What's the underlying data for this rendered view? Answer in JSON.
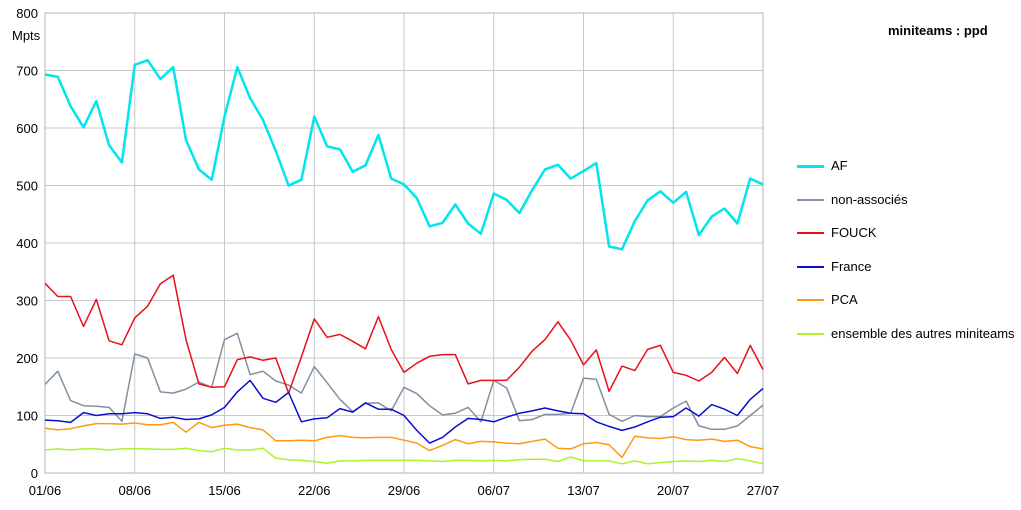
{
  "chart_data": {
    "type": "line",
    "title": "miniteams : ppd",
    "ylabel": "Mpts",
    "ylim": [
      0,
      800
    ],
    "yticks": [
      "0",
      "100",
      "200",
      "300",
      "400",
      "500",
      "600",
      "700",
      "800"
    ],
    "xtick_labels": [
      "01/06",
      "08/06",
      "15/06",
      "22/06",
      "29/06",
      "06/07",
      "13/07",
      "20/07",
      "27/07"
    ],
    "grid": true,
    "legend_position": "right",
    "series": [
      {
        "name": "AF",
        "color": "#00e5ee",
        "width": 2.5,
        "values": [
          693,
          689,
          638,
          601,
          647,
          570,
          540,
          710,
          718,
          685,
          706,
          579,
          528,
          510,
          620,
          706,
          652,
          614,
          560,
          500,
          510,
          620,
          568,
          563,
          524,
          535,
          588,
          512,
          502,
          478,
          429,
          435,
          467,
          434,
          416,
          486,
          475,
          452,
          492,
          528,
          536,
          512,
          525,
          539,
          394,
          389,
          438,
          474,
          490,
          470,
          489,
          414,
          446,
          460,
          434,
          512,
          502
        ]
      },
      {
        "name": "non-associés",
        "color": "#8090a0",
        "width": 1.5,
        "values": [
          154,
          177,
          126,
          117,
          116,
          114,
          90,
          207,
          200,
          141,
          139,
          146,
          158,
          149,
          232,
          243,
          171,
          177,
          160,
          153,
          139,
          185,
          157,
          128,
          107,
          121,
          122,
          108,
          149,
          138,
          117,
          101,
          104,
          114,
          89,
          161,
          148,
          91,
          93,
          102,
          102,
          104,
          165,
          163,
          102,
          90,
          100,
          98,
          98,
          113,
          125,
          82,
          76,
          76,
          82,
          100,
          118
        ]
      },
      {
        "name": "FOUCK",
        "color": "#e8101a",
        "width": 1.5,
        "values": [
          330,
          307,
          307,
          255,
          302,
          230,
          223,
          270,
          290,
          329,
          344,
          232,
          155,
          149,
          150,
          197,
          202,
          196,
          200,
          139,
          202,
          268,
          236,
          241,
          229,
          216,
          272,
          215,
          175,
          191,
          203,
          206,
          206,
          155,
          161,
          161,
          161,
          184,
          212,
          232,
          263,
          231,
          188,
          214,
          142,
          186,
          178,
          215,
          222,
          175,
          170,
          160,
          175,
          201,
          173,
          222,
          180
        ]
      },
      {
        "name": "France",
        "color": "#0a10cc",
        "width": 1.5,
        "values": [
          92,
          91,
          88,
          105,
          100,
          103,
          103,
          105,
          103,
          95,
          97,
          93,
          94,
          101,
          114,
          141,
          161,
          130,
          123,
          140,
          89,
          94,
          96,
          112,
          106,
          122,
          111,
          111,
          100,
          74,
          52,
          62,
          80,
          95,
          93,
          89,
          97,
          104,
          108,
          113,
          108,
          104,
          103,
          89,
          81,
          74,
          80,
          89,
          97,
          98,
          113,
          99,
          119,
          111,
          100,
          128,
          147
        ]
      },
      {
        "name": "PCA",
        "color": "#ff9a10",
        "width": 1.5,
        "values": [
          78,
          75,
          77,
          82,
          86,
          86,
          85,
          87,
          84,
          84,
          88,
          71,
          88,
          79,
          83,
          85,
          79,
          75,
          56,
          56,
          57,
          56,
          62,
          65,
          62,
          61,
          62,
          62,
          57,
          52,
          39,
          48,
          58,
          51,
          55,
          54,
          52,
          51,
          55,
          59,
          43,
          42,
          51,
          53,
          49,
          27,
          64,
          61,
          60,
          63,
          58,
          57,
          59,
          55,
          57,
          46,
          42
        ]
      },
      {
        "name": "ensemble des autres miniteams",
        "color": "#b0f030",
        "width": 1.5,
        "values": [
          40,
          42,
          40,
          42,
          42,
          40,
          42,
          42,
          42,
          41,
          41,
          43,
          39,
          37,
          43,
          40,
          40,
          43,
          26,
          23,
          22,
          20,
          17,
          21,
          21,
          22,
          22,
          22,
          22,
          22,
          21,
          20,
          22,
          22,
          21,
          22,
          21,
          23,
          24,
          24,
          20,
          28,
          21,
          21,
          21,
          16,
          21,
          16,
          18,
          20,
          21,
          20,
          22,
          20,
          25,
          21,
          16
        ]
      }
    ]
  }
}
